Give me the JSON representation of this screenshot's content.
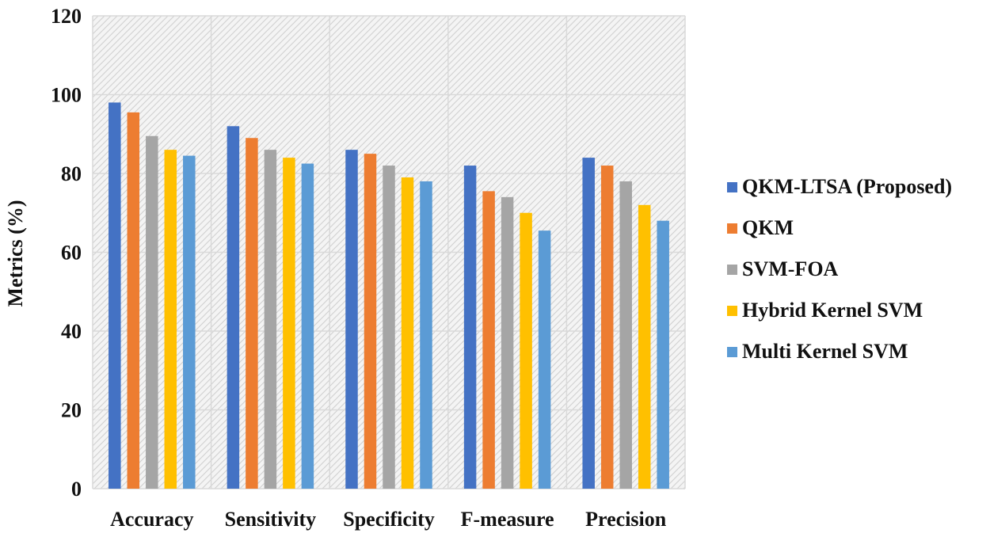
{
  "chart_data": {
    "type": "bar",
    "categories": [
      "Accuracy",
      "Sensitivity",
      "Specificity",
      "F-measure",
      "Precision"
    ],
    "series": [
      {
        "name": "QKM-LTSA (Proposed)",
        "color": "#4472c4",
        "values": [
          98,
          92,
          86,
          82,
          84
        ]
      },
      {
        "name": "QKM",
        "color": "#ed7d31",
        "values": [
          95.5,
          89,
          85,
          75.5,
          82
        ]
      },
      {
        "name": "SVM-FOA",
        "color": "#a5a5a5",
        "values": [
          89.5,
          86,
          82,
          74,
          78
        ]
      },
      {
        "name": "Hybrid Kernel SVM",
        "color": "#ffc000",
        "values": [
          86,
          84,
          79,
          70,
          72
        ]
      },
      {
        "name": "Multi Kernel SVM",
        "color": "#5b9bd5",
        "values": [
          84.5,
          82.5,
          78,
          65.5,
          68
        ]
      }
    ],
    "ylabel": "Metrics (%)",
    "xlabel": "",
    "title": "",
    "ylim": [
      0,
      120
    ],
    "yticks": [
      0,
      20,
      40,
      60,
      80,
      100,
      120
    ],
    "grid": true,
    "legend_position": "right"
  }
}
